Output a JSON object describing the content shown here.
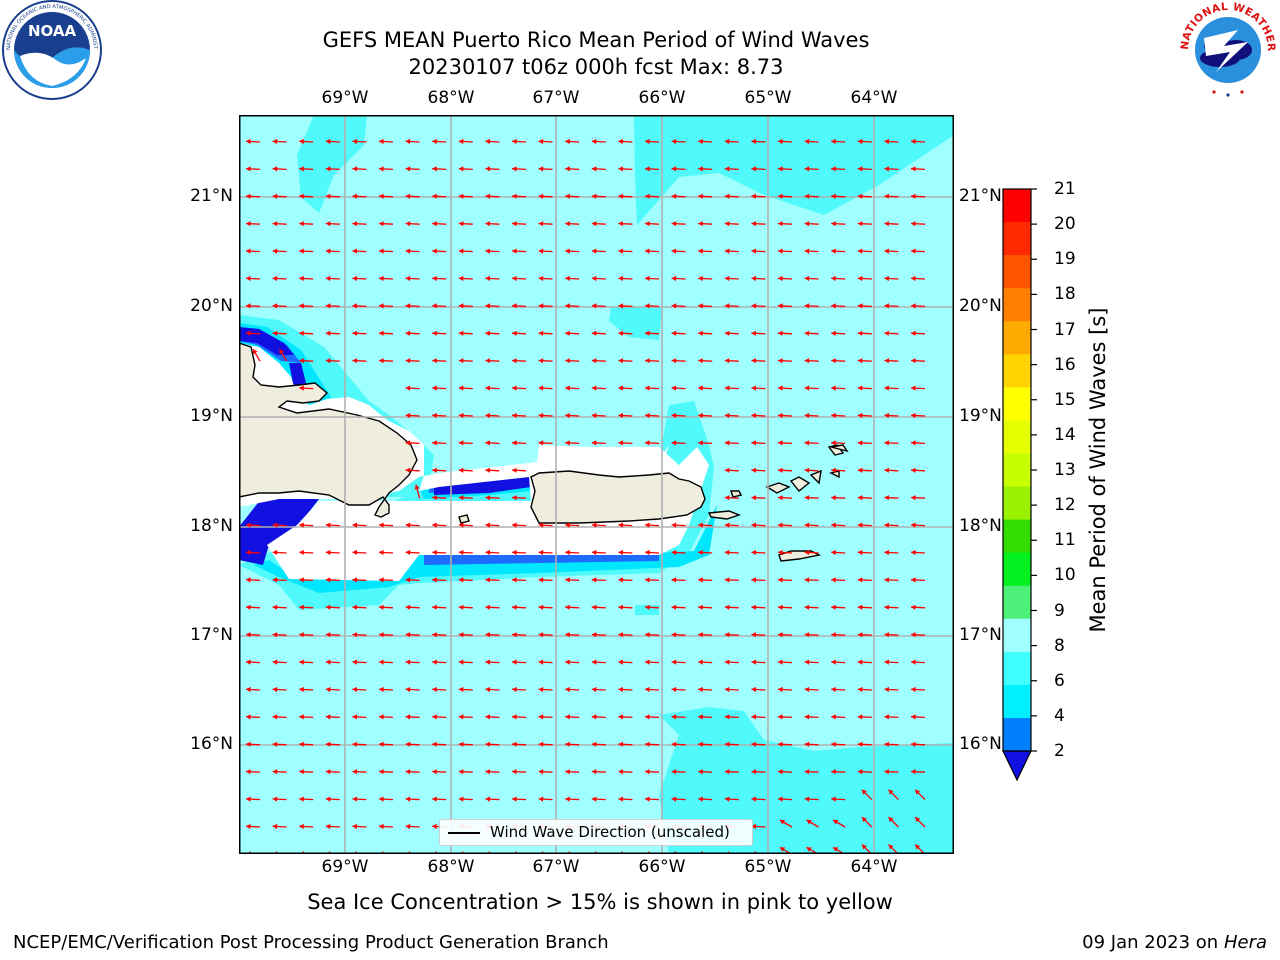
{
  "title": {
    "line1": "GEFS MEAN Puerto Rico Mean Period of Wind Waves",
    "line2": "20230107 t06z 000h fcst   Max: 8.73"
  },
  "logos": {
    "noaa_text": "NOAA",
    "noaa_ring": "NATIONAL OCEANIC AND ATMOSPHERIC ADMINISTRATION · U.S. DEPARTMENT OF COMMERCE",
    "nws_ring": "NATIONAL WEATHER SERVICE"
  },
  "axes": {
    "lon_ticks": [
      "69°W",
      "68°W",
      "67°W",
      "66°W",
      "65°W",
      "64°W"
    ],
    "lat_ticks": [
      "21°N",
      "20°N",
      "19°N",
      "18°N",
      "17°N",
      "16°N"
    ]
  },
  "legend": {
    "label": "Wind Wave Direction (unscaled)"
  },
  "colorbar": {
    "title": "Mean Period of Wind Waves [s]",
    "labels": [
      "21",
      "20",
      "19",
      "18",
      "17",
      "16",
      "15",
      "14",
      "13",
      "12",
      "11",
      "10",
      "9",
      "8",
      "6",
      "4",
      "2"
    ],
    "colors": [
      "#ff0000",
      "#ff2a00",
      "#ff5500",
      "#ff8000",
      "#ffaa00",
      "#ffd400",
      "#ffff00",
      "#e6ff00",
      "#c8ff00",
      "#99f000",
      "#33dd00",
      "#00f020",
      "#4df078",
      "#a0ffff",
      "#40ffff",
      "#00f0ff",
      "#0080ff"
    ],
    "under_color": "#1010e0"
  },
  "colors": {
    "field_main": "#a0ffff",
    "field_mid": "#50fafa",
    "field_deep": "#00e6ff",
    "field_blue": "#1e6bff",
    "field_dark": "#1010e0",
    "land": "#efedde",
    "arrow": "#ff0000"
  },
  "note": "Sea Ice Concentration > 15% is shown in pink to yellow",
  "footer": {
    "left": "NCEP/EMC/Verification Post Processing Product Generation Branch",
    "right_prefix": "09 Jan 2023 on ",
    "right_host": "Hera"
  }
}
